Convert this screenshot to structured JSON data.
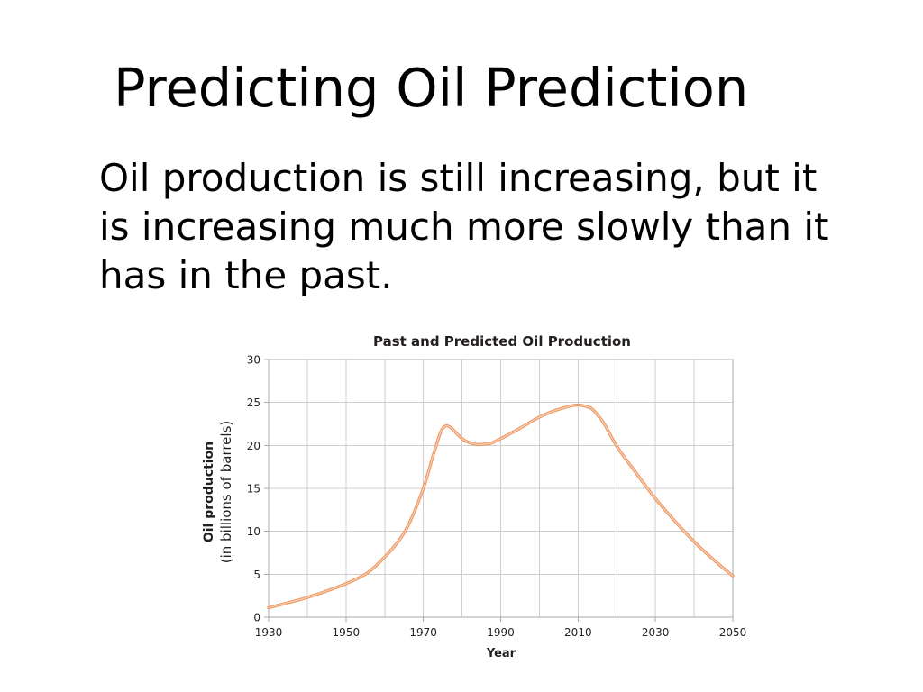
{
  "slide": {
    "title": "Predicting Oil Prediction",
    "body_lines": [
      "Oil production is still increasing, but it",
      "is increasing much more slowly than it",
      "has in the past."
    ]
  },
  "chart_data": {
    "type": "line",
    "title": "Past and Predicted Oil Production",
    "xlabel": "Year",
    "ylabel": "Oil production",
    "ylabel_unit": "(in billions of barrels)",
    "xlim": [
      1930,
      2050
    ],
    "ylim": [
      0,
      30
    ],
    "x_ticks": [
      1930,
      1950,
      1970,
      1990,
      2010,
      2030,
      2050
    ],
    "y_ticks": [
      0,
      5,
      10,
      15,
      20,
      25,
      30
    ],
    "grid": {
      "show": true,
      "x_step": 10,
      "y_step": 5,
      "color": "#cfcfcf"
    },
    "axis_color": "#a9a9a9",
    "series": [
      {
        "x": [
          1930,
          1940,
          1950,
          1955,
          1960,
          1965,
          1970,
          1973,
          1975,
          1976,
          1977,
          1979,
          1981,
          1984,
          1987,
          1990,
          1995,
          2000,
          2005,
          2010,
          2013,
          2016,
          2020,
          2025,
          2030,
          2035,
          2040,
          2045,
          2050
        ],
        "y": [
          1.1,
          2.3,
          3.9,
          5.0,
          7.0,
          9.8,
          15.0,
          19.5,
          22.0,
          22.3,
          22.1,
          21.2,
          20.5,
          20.1,
          20.2,
          20.8,
          22.0,
          23.3,
          24.2,
          24.7,
          24.4,
          23.0,
          19.9,
          16.8,
          13.8,
          11.2,
          8.8,
          6.7,
          4.8
        ],
        "color": "#ec9a68",
        "highlight_color": "#fbd3b6"
      }
    ]
  }
}
